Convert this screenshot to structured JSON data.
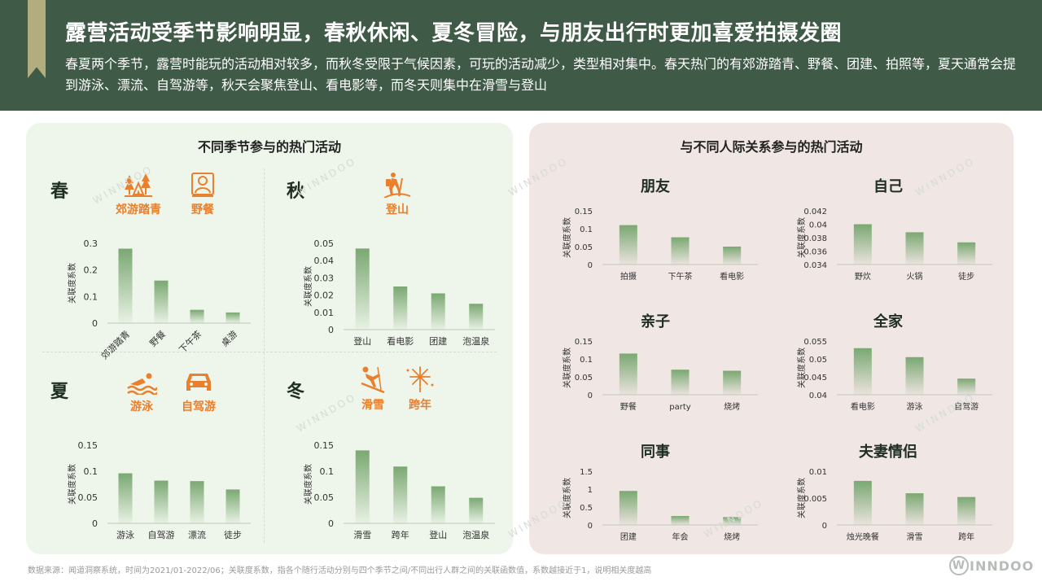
{
  "header": {
    "title": "露营活动受季节影响明显，春秋休闲、夏冬冒险，与朋友出行时更加喜爱拍摄发圈",
    "subtitle": "春夏两个季节，露营时能玩的活动相对较多，而秋冬受限于气候因素，可玩的活动减少，类型相对集中。春天热门的有郊游踏青、野餐、团建、拍照等，夏天通常会提到游泳、漂流、自驾游等，秋天会聚焦登山、看电影等，而冬天则集中在滑雪与登山"
  },
  "left_panel": {
    "title": "不同季节参与的热门活动",
    "spring": {
      "season": "春",
      "activities": [
        {
          "label": "郊游踏青",
          "icon": "camp-trees-icon"
        },
        {
          "label": "野餐",
          "icon": "picnic-icon"
        }
      ]
    },
    "autumn": {
      "season": "秋",
      "activities": [
        {
          "label": "登山",
          "icon": "hiker-icon"
        }
      ]
    },
    "summer": {
      "season": "夏",
      "activities": [
        {
          "label": "游泳",
          "icon": "swimmer-icon"
        },
        {
          "label": "自驾游",
          "icon": "car-icon"
        }
      ]
    },
    "winter": {
      "season": "冬",
      "activities": [
        {
          "label": "滑雪",
          "icon": "skier-icon"
        },
        {
          "label": "跨年",
          "icon": "fireworks-icon"
        }
      ]
    }
  },
  "right_panel": {
    "title": "与不同人际关系参与的热门活动",
    "groups": {
      "friends": "朋友",
      "self": "自己",
      "parent_child": "亲子",
      "family": "全家",
      "colleagues": "同事",
      "couple": "夫妻情侣"
    }
  },
  "colors": {
    "header_bg": "#3f5a46",
    "accent": "#e8802e",
    "bar_top": "#7aa872",
    "left_bg": "#eef5ea",
    "right_bg": "#f0e6e3"
  },
  "chart_data": [
    {
      "id": "spring",
      "type": "bar",
      "title": "",
      "ylabel": "关联度系数",
      "categories": [
        "郊游踏青",
        "野餐",
        "下午茶",
        "桌游"
      ],
      "values": [
        0.28,
        0.16,
        0.05,
        0.04
      ],
      "yticks": [
        "0",
        "0.1",
        "0.2",
        "0.3"
      ],
      "ylim": [
        0,
        0.3
      ],
      "rotate_labels": true
    },
    {
      "id": "autumn",
      "type": "bar",
      "title": "",
      "ylabel": "关联度系数",
      "categories": [
        "登山",
        "看电影",
        "团建",
        "泡温泉"
      ],
      "values": [
        0.047,
        0.025,
        0.021,
        0.015
      ],
      "yticks": [
        "0",
        "0.01",
        "0.02",
        "0.03",
        "0.04",
        "0.05"
      ],
      "ylim": [
        0,
        0.05
      ]
    },
    {
      "id": "summer",
      "type": "bar",
      "title": "",
      "ylabel": "关联度系数",
      "categories": [
        "游泳",
        "自驾游",
        "漂流",
        "徒步"
      ],
      "values": [
        0.096,
        0.082,
        0.081,
        0.065
      ],
      "yticks": [
        "0",
        "0.05",
        "0.1",
        "0.15"
      ],
      "ylim": [
        0,
        0.15
      ]
    },
    {
      "id": "winter",
      "type": "bar",
      "title": "",
      "ylabel": "关联度系数",
      "categories": [
        "滑雪",
        "跨年",
        "登山",
        "泡温泉"
      ],
      "values": [
        0.14,
        0.109,
        0.071,
        0.049
      ],
      "yticks": [
        "0",
        "0.05",
        "0.1",
        "0.15"
      ],
      "ylim": [
        0,
        0.15
      ]
    },
    {
      "id": "friends",
      "type": "bar",
      "title": "朋友",
      "ylabel": "关联度系数",
      "categories": [
        "拍摄",
        "下午茶",
        "看电影"
      ],
      "values": [
        0.11,
        0.076,
        0.05
      ],
      "yticks": [
        "0",
        "0.05",
        "0.1",
        "0.15"
      ],
      "ylim": [
        0,
        0.15
      ]
    },
    {
      "id": "self",
      "type": "bar",
      "title": "自己",
      "ylabel": "关联度系数",
      "categories": [
        "野炊",
        "火锅",
        "徒步"
      ],
      "values": [
        0.04,
        0.0388,
        0.0373
      ],
      "yticks": [
        "0.034",
        "0.036",
        "0.038",
        "0.04",
        "0.042"
      ],
      "ylim": [
        0.034,
        0.042
      ]
    },
    {
      "id": "parent_child",
      "type": "bar",
      "title": "亲子",
      "ylabel": "关联度系数",
      "categories": [
        "野餐",
        "party",
        "烧烤"
      ],
      "values": [
        0.115,
        0.07,
        0.067
      ],
      "yticks": [
        "0",
        "0.05",
        "0.1",
        "0.15"
      ],
      "ylim": [
        0,
        0.15
      ]
    },
    {
      "id": "family",
      "type": "bar",
      "title": "全家",
      "ylabel": "关联度系数",
      "categories": [
        "看电影",
        "游泳",
        "自驾游"
      ],
      "values": [
        0.053,
        0.0505,
        0.0445
      ],
      "yticks": [
        "0.04",
        "0.045",
        "0.05",
        "0.055"
      ],
      "ylim": [
        0.04,
        0.055
      ]
    },
    {
      "id": "colleagues",
      "type": "bar",
      "title": "同事",
      "ylabel": "关联度系数",
      "categories": [
        "团建",
        "年会",
        "烧烤"
      ],
      "values": [
        0.95,
        0.25,
        0.22
      ],
      "yticks": [
        "0",
        "0.5",
        "1",
        "1.5"
      ],
      "ylim": [
        0,
        1.5
      ]
    },
    {
      "id": "couple",
      "type": "bar",
      "title": "夫妻情侣",
      "ylabel": "关联度系数",
      "categories": [
        "烛光晚餐",
        "滑雪",
        "跨年"
      ],
      "values": [
        0.0082,
        0.0059,
        0.0052
      ],
      "yticks": [
        "0",
        "0.005",
        "0.01"
      ],
      "ylim": [
        0,
        0.01
      ]
    }
  ],
  "footer": {
    "source": "数据来源：闻道洞察系统，时间为2021/01-2022/06；关联度系数，指各个随行活动分别与四个季节之间/不同出行人群之间的关联函数值，系数越接近于1，说明相关度越高",
    "brand_mark": "W",
    "brand_text": "INNDOO",
    "watermark": "WINNDOO"
  }
}
